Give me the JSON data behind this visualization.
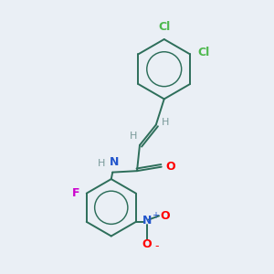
{
  "background_color": "#eaeff5",
  "bond_color": "#2d6e5a",
  "bond_width": 1.4,
  "atom_colors": {
    "Cl": "#4db84d",
    "O": "#ff0000",
    "N_amide": "#2255cc",
    "N_nitro": "#2255cc",
    "F": "#cc00cc",
    "H": "#7a9a9a",
    "C": "#2d6e5a"
  },
  "font_size": 9
}
